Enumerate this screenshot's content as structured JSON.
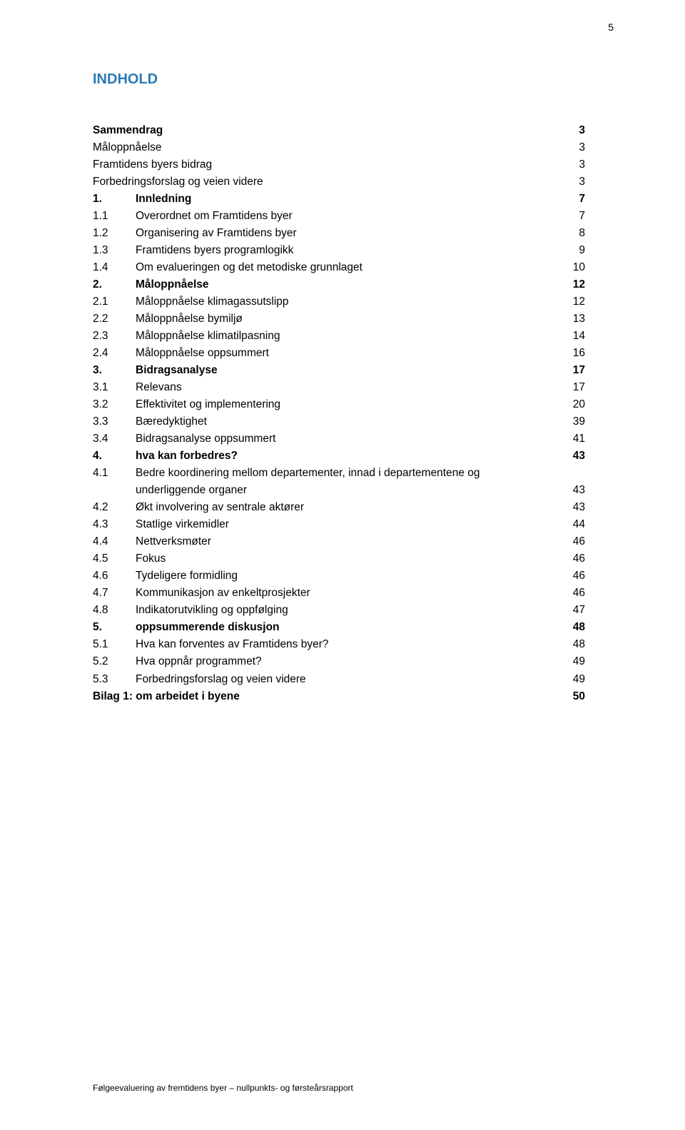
{
  "page_number": "5",
  "title": "INDHOLD",
  "footer": "Følgeevaluering av fremtidens byer – nullpunkts- og førsteårsrapport",
  "colors": {
    "title": "#2a7bb5",
    "text": "#000000",
    "background": "#ffffff"
  },
  "toc": [
    {
      "num": "",
      "label": "Sammendrag",
      "page": "3",
      "bold": true
    },
    {
      "num": "",
      "label": "Måloppnåelse",
      "page": "3",
      "bold": false
    },
    {
      "num": "",
      "label": "Framtidens byers bidrag",
      "page": "3",
      "bold": false
    },
    {
      "num": "",
      "label": "Forbedringsforslag og veien videre",
      "page": "3",
      "bold": false
    },
    {
      "num": "1.",
      "label": "Innledning",
      "page": "7",
      "bold": true
    },
    {
      "num": "1.1",
      "label": "Overordnet om Framtidens byer",
      "page": "7",
      "bold": false
    },
    {
      "num": "1.2",
      "label": "Organisering av Framtidens byer",
      "page": "8",
      "bold": false
    },
    {
      "num": "1.3",
      "label": "Framtidens byers programlogikk",
      "page": "9",
      "bold": false
    },
    {
      "num": "1.4",
      "label": "Om evalueringen og det metodiske grunnlaget",
      "page": "10",
      "bold": false
    },
    {
      "num": "2.",
      "label": "Måloppnåelse",
      "page": "12",
      "bold": true
    },
    {
      "num": "2.1",
      "label": "Måloppnåelse klimagassutslipp",
      "page": "12",
      "bold": false
    },
    {
      "num": "2.2",
      "label": "Måloppnåelse bymiljø",
      "page": "13",
      "bold": false
    },
    {
      "num": "2.3",
      "label": "Måloppnåelse klimatilpasning",
      "page": "14",
      "bold": false
    },
    {
      "num": "2.4",
      "label": "Måloppnåelse oppsummert",
      "page": "16",
      "bold": false
    },
    {
      "num": "3.",
      "label": "Bidragsanalyse",
      "page": "17",
      "bold": true
    },
    {
      "num": "3.1",
      "label": "Relevans",
      "page": "17",
      "bold": false
    },
    {
      "num": "3.2",
      "label": "Effektivitet og implementering",
      "page": "20",
      "bold": false
    },
    {
      "num": "3.3",
      "label": "Bæredyktighet",
      "page": "39",
      "bold": false
    },
    {
      "num": "3.4",
      "label": "Bidragsanalyse oppsummert",
      "page": "41",
      "bold": false
    },
    {
      "num": "4.",
      "label": "hva kan forbedres?",
      "page": "43",
      "bold": true
    },
    {
      "num": "4.1",
      "label": "Bedre koordinering mellom departementer, innad i departementene og",
      "page": "",
      "bold": false
    },
    {
      "num": "",
      "label": "underliggende organer",
      "page": "43",
      "bold": false,
      "continuation": true
    },
    {
      "num": "4.2",
      "label": "Økt involvering av sentrale aktører",
      "page": "43",
      "bold": false
    },
    {
      "num": "4.3",
      "label": "Statlige virkemidler",
      "page": "44",
      "bold": false
    },
    {
      "num": "4.4",
      "label": "Nettverksmøter",
      "page": "46",
      "bold": false
    },
    {
      "num": "4.5",
      "label": "Fokus",
      "page": "46",
      "bold": false
    },
    {
      "num": "4.6",
      "label": "Tydeligere formidling",
      "page": "46",
      "bold": false
    },
    {
      "num": "4.7",
      "label": "Kommunikasjon av enkeltprosjekter",
      "page": "46",
      "bold": false
    },
    {
      "num": "4.8",
      "label": "Indikatorutvikling og oppfølging",
      "page": "47",
      "bold": false
    },
    {
      "num": "5.",
      "label": "oppsummerende diskusjon",
      "page": "48",
      "bold": true
    },
    {
      "num": "5.1",
      "label": "Hva kan forventes av Framtidens byer?",
      "page": "48",
      "bold": false
    },
    {
      "num": "5.2",
      "label": "Hva oppnår programmet?",
      "page": "49",
      "bold": false
    },
    {
      "num": "5.3",
      "label": "Forbedringsforslag og veien videre",
      "page": "49",
      "bold": false
    },
    {
      "num": "",
      "label": "Bilag 1: om arbeidet i byene",
      "page": "50",
      "bold": true
    }
  ]
}
